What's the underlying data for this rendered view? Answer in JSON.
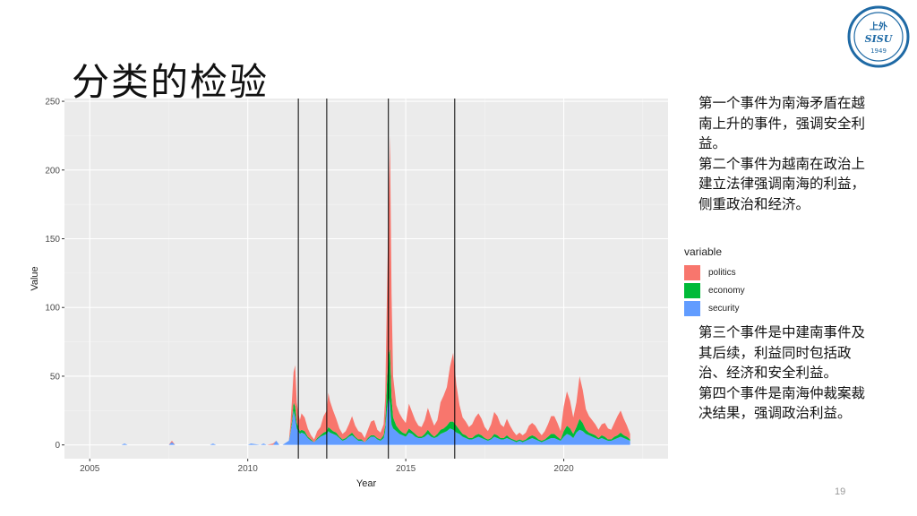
{
  "slide": {
    "title": "分类的检验",
    "page_number": "19",
    "logo": {
      "text": "上外 SISU 1949",
      "color": "#1f6aa5"
    }
  },
  "notes": {
    "top": [
      "第一个事件为南海矛盾在越南上升的事件，强调安全利益。",
      "第二个事件为越南在政治上建立法律强调南海的利益，侧重政治和经济。"
    ],
    "bottom": [
      "第三个事件是中建南事件及其后续，利益同时包括政治、经济和安全利益。",
      "第四个事件是南海仲裁案裁决结果，强调政治利益。"
    ]
  },
  "chart_data": {
    "type": "area",
    "stacked": true,
    "xlabel": "Year",
    "ylabel": "Value",
    "xlim": [
      2004.2,
      2023.3
    ],
    "ylim": [
      -10,
      252
    ],
    "x_ticks": [
      2005,
      2010,
      2015,
      2020
    ],
    "y_ticks": [
      0,
      50,
      100,
      150,
      200,
      250
    ],
    "grid": true,
    "background": "#ebebeb",
    "legend": {
      "title": "variable",
      "position": "right",
      "entries": [
        {
          "name": "politics",
          "color": "#f8766d"
        },
        {
          "name": "economy",
          "color": "#00ba38"
        },
        {
          "name": "security",
          "color": "#619cff"
        }
      ]
    },
    "vlines": [
      2011.6,
      2012.5,
      2014.45,
      2016.55
    ],
    "x": [
      2006.0,
      2006.1,
      2006.2,
      2007.5,
      2007.6,
      2007.7,
      2008.8,
      2008.9,
      2009.0,
      2010.0,
      2010.1,
      2010.4,
      2010.5,
      2010.6,
      2010.8,
      2010.9,
      2011.0,
      2011.1,
      2011.3,
      2011.35,
      2011.4,
      2011.45,
      2011.5,
      2011.55,
      2011.6,
      2011.65,
      2011.7,
      2011.8,
      2011.9,
      2012.0,
      2012.1,
      2012.2,
      2012.3,
      2012.4,
      2012.5,
      2012.55,
      2012.6,
      2012.7,
      2012.8,
      2012.9,
      2013.0,
      2013.1,
      2013.2,
      2013.3,
      2013.4,
      2013.5,
      2013.6,
      2013.7,
      2013.8,
      2013.9,
      2014.0,
      2014.1,
      2014.2,
      2014.3,
      2014.35,
      2014.4,
      2014.45,
      2014.5,
      2014.55,
      2014.6,
      2014.7,
      2014.8,
      2014.9,
      2015.0,
      2015.1,
      2015.2,
      2015.3,
      2015.4,
      2015.5,
      2015.6,
      2015.7,
      2015.8,
      2015.9,
      2016.0,
      2016.1,
      2016.2,
      2016.3,
      2016.4,
      2016.5,
      2016.6,
      2016.7,
      2016.8,
      2016.9,
      2017.0,
      2017.1,
      2017.2,
      2017.3,
      2017.4,
      2017.5,
      2017.6,
      2017.7,
      2017.8,
      2017.9,
      2018.0,
      2018.1,
      2018.2,
      2018.3,
      2018.4,
      2018.5,
      2018.6,
      2018.7,
      2018.8,
      2018.9,
      2019.0,
      2019.1,
      2019.2,
      2019.3,
      2019.4,
      2019.5,
      2019.6,
      2019.7,
      2019.8,
      2019.9,
      2020.0,
      2020.1,
      2020.2,
      2020.3,
      2020.4,
      2020.5,
      2020.6,
      2020.7,
      2020.8,
      2020.9,
      2021.0,
      2021.1,
      2021.2,
      2021.3,
      2021.4,
      2021.5,
      2021.6,
      2021.7,
      2021.8,
      2021.9,
      2022.0,
      2022.1
    ],
    "series": [
      {
        "name": "security",
        "values": [
          0,
          1,
          0,
          0,
          2,
          0,
          0,
          1,
          0,
          0,
          1,
          0,
          1,
          0,
          0,
          3,
          0,
          0,
          3,
          8,
          15,
          25,
          20,
          12,
          10,
          8,
          9,
          8,
          5,
          3,
          2,
          4,
          6,
          7,
          8,
          10,
          9,
          8,
          7,
          5,
          3,
          4,
          6,
          7,
          5,
          3,
          3,
          2,
          4,
          6,
          6,
          4,
          3,
          5,
          10,
          25,
          35,
          30,
          15,
          12,
          10,
          8,
          7,
          6,
          9,
          8,
          6,
          5,
          5,
          6,
          8,
          6,
          5,
          6,
          8,
          9,
          10,
          12,
          11,
          9,
          8,
          6,
          5,
          4,
          4,
          5,
          6,
          5,
          4,
          3,
          4,
          6,
          5,
          4,
          4,
          5,
          4,
          3,
          2,
          3,
          2,
          3,
          4,
          5,
          4,
          3,
          2,
          3,
          4,
          5,
          5,
          4,
          3,
          6,
          8,
          7,
          5,
          9,
          11,
          10,
          8,
          7,
          6,
          5,
          4,
          5,
          4,
          3,
          3,
          4,
          5,
          6,
          5,
          4,
          3
        ]
      },
      {
        "name": "economy",
        "values": [
          0,
          0,
          0,
          0,
          0,
          0,
          0,
          0,
          0,
          0,
          0,
          0,
          0,
          0,
          0,
          0,
          0,
          0,
          0,
          1,
          3,
          6,
          8,
          4,
          3,
          2,
          2,
          2,
          1,
          1,
          0,
          1,
          1,
          2,
          2,
          3,
          3,
          2,
          2,
          1,
          1,
          1,
          1,
          2,
          1,
          1,
          1,
          0,
          1,
          1,
          1,
          1,
          1,
          2,
          4,
          18,
          30,
          40,
          20,
          8,
          4,
          3,
          2,
          2,
          3,
          2,
          2,
          1,
          1,
          2,
          3,
          2,
          1,
          2,
          3,
          3,
          4,
          5,
          6,
          5,
          3,
          2,
          2,
          1,
          1,
          2,
          2,
          2,
          1,
          1,
          1,
          2,
          2,
          1,
          1,
          2,
          1,
          1,
          1,
          1,
          1,
          1,
          2,
          2,
          2,
          1,
          1,
          1,
          2,
          3,
          3,
          2,
          1,
          4,
          6,
          5,
          3,
          4,
          8,
          6,
          3,
          2,
          2,
          2,
          1,
          2,
          2,
          1,
          1,
          2,
          2,
          3,
          2,
          2,
          1
        ]
      },
      {
        "name": "politics",
        "values": [
          0,
          0,
          0,
          0,
          1,
          0,
          0,
          0,
          0,
          0,
          0,
          0,
          0,
          0,
          1,
          0,
          0,
          0,
          0,
          6,
          15,
          22,
          30,
          15,
          10,
          8,
          12,
          10,
          6,
          3,
          2,
          5,
          6,
          12,
          15,
          25,
          20,
          15,
          10,
          6,
          4,
          5,
          8,
          12,
          8,
          6,
          5,
          3,
          6,
          10,
          11,
          6,
          5,
          8,
          20,
          60,
          100,
          155,
          75,
          30,
          15,
          12,
          10,
          8,
          18,
          14,
          10,
          8,
          7,
          10,
          16,
          12,
          8,
          10,
          20,
          24,
          28,
          40,
          50,
          30,
          18,
          12,
          10,
          8,
          10,
          13,
          15,
          12,
          8,
          6,
          10,
          16,
          14,
          10,
          8,
          12,
          9,
          6,
          4,
          5,
          4,
          5,
          8,
          9,
          8,
          6,
          4,
          6,
          9,
          13,
          13,
          10,
          6,
          18,
          25,
          20,
          12,
          18,
          31,
          24,
          15,
          12,
          10,
          8,
          6,
          8,
          10,
          8,
          7,
          10,
          14,
          16,
          12,
          8,
          4
        ]
      }
    ]
  }
}
